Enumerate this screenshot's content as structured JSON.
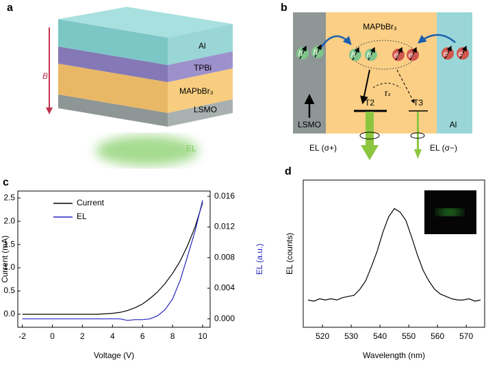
{
  "panel_a": {
    "letter": "a",
    "layers": [
      "Al",
      "TPBi",
      "MAPbBr₃",
      "LSMO"
    ],
    "field": "B",
    "emission": "EL"
  },
  "panel_b": {
    "letter": "b",
    "material": "MAPbBr₃",
    "particles": [
      "h",
      "h",
      "h",
      "h",
      "e",
      "e",
      "e",
      "e"
    ],
    "spin_relaxation": "τₛ",
    "levels": [
      "T2",
      "T3"
    ],
    "electrodes": [
      "LSMO",
      "Al"
    ],
    "emissions": [
      "EL (σ+)",
      "EL (σ−)"
    ]
  },
  "chart_data": [
    {
      "type": "line",
      "letter": "c",
      "x_label": "Voltage (V)",
      "y_label": "Current (mA)",
      "y2_label": "EL (a.u.)",
      "x": [
        -2,
        -1,
        0,
        1,
        2,
        3,
        4,
        4.5,
        5,
        5.5,
        6,
        6.5,
        7,
        7.5,
        8,
        8.5,
        9,
        9.5,
        10
      ],
      "series": [
        {
          "name": "Current",
          "color": "#000000",
          "values": [
            0,
            0,
            0,
            0,
            0,
            0,
            0.02,
            0.04,
            0.08,
            0.14,
            0.22,
            0.34,
            0.48,
            0.66,
            0.88,
            1.14,
            1.48,
            1.88,
            2.4
          ]
        },
        {
          "name": "EL",
          "color": "#2323c0",
          "axis": "y2",
          "values": [
            0,
            0,
            0,
            0,
            0,
            0,
            0,
            0,
            -0.0002,
            -0.0001,
            -0.0001,
            0,
            0.0004,
            0.0012,
            0.0026,
            0.005,
            0.0082,
            0.0115,
            0.0155
          ]
        }
      ],
      "xlim": [
        -2.3,
        10.5
      ],
      "xticks": [
        -2,
        0,
        2,
        4,
        6,
        8,
        10
      ],
      "ylim": [
        -0.28,
        2.65
      ],
      "yticks": [
        {
          "value": 0,
          "label": "0.0"
        },
        0.5,
        {
          "value": 1,
          "label": "1.0"
        },
        1.5,
        {
          "value": 2,
          "label": "2.0"
        },
        2.5
      ],
      "y2lim": [
        -0.0011,
        0.0167
      ],
      "y2ticks": [
        {
          "value": 0,
          "label": "0.000"
        },
        {
          "value": 0.004,
          "label": "0.004"
        },
        {
          "value": 0.008,
          "label": "0.008"
        },
        {
          "value": 0.012,
          "label": "0.012"
        },
        {
          "value": 0.016,
          "label": "0.016"
        }
      ],
      "legend": "upper left"
    },
    {
      "type": "line",
      "letter": "d",
      "x_label": "Wavelength (nm)",
      "y_label": "EL (counts)",
      "x": [
        515,
        517,
        519,
        521,
        523,
        525,
        527,
        529,
        531,
        533,
        535,
        537,
        539,
        541,
        543,
        545,
        547,
        549,
        551,
        553,
        555,
        557,
        559,
        561,
        563,
        565,
        567,
        569,
        571,
        573,
        575
      ],
      "series": [
        {
          "color": "#000000",
          "values": [
            0.12,
            0.11,
            0.13,
            0.12,
            0.13,
            0.12,
            0.14,
            0.15,
            0.16,
            0.21,
            0.28,
            0.4,
            0.53,
            0.69,
            0.82,
            0.89,
            0.86,
            0.79,
            0.65,
            0.5,
            0.37,
            0.28,
            0.21,
            0.17,
            0.15,
            0.13,
            0.12,
            0.12,
            0.13,
            0.11,
            0.12
          ]
        }
      ],
      "xlim": [
        513.3,
        576.4
      ],
      "xticks": [
        520,
        530,
        540,
        550,
        560,
        570
      ],
      "ylim": [
        -0.11,
        1.13
      ]
    }
  ]
}
